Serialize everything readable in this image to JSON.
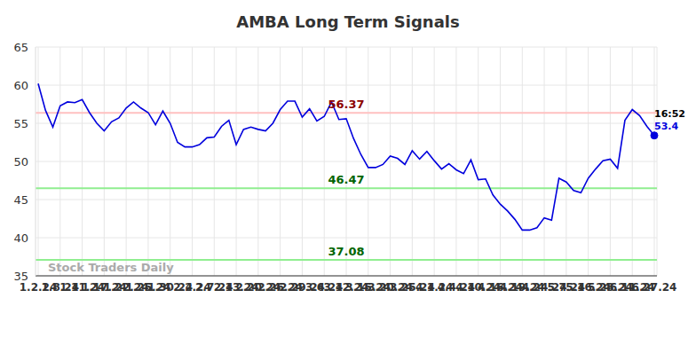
{
  "chart_data": {
    "type": "line",
    "title": "AMBA Long Term Signals",
    "watermark": "Stock Traders Daily",
    "annotation": "16:52",
    "categories": [
      "1.2.24",
      null,
      null,
      "1.8.24",
      null,
      null,
      "1.11.24",
      null,
      null,
      "1.17.24",
      null,
      null,
      "1.22.24",
      null,
      null,
      "1.25.24",
      null,
      null,
      "1.30.24",
      null,
      null,
      "2.2.24",
      null,
      null,
      "2.7.24",
      null,
      null,
      "2.13.24",
      null,
      null,
      "2.20.24",
      null,
      null,
      "2.26.24",
      null,
      null,
      "2.29.24",
      null,
      null,
      "3.6.24",
      null,
      null,
      "3.12.24",
      null,
      null,
      "3.15.24",
      null,
      null,
      "3.20.24",
      null,
      null,
      "3.25.24",
      null,
      null,
      "4.1.24",
      null,
      null,
      "4.4.24",
      null,
      null,
      "4.10.24",
      null,
      null,
      "4.16.24",
      null,
      null,
      "4.19.24",
      null,
      null,
      "4.24.24",
      null,
      null,
      "5.7.24",
      null,
      null,
      "5.16.24",
      null,
      null,
      "5.28.24",
      null,
      null,
      "6.11.24",
      null,
      null,
      "6.27.24"
    ],
    "values": [
      60.2,
      56.7,
      54.5,
      57.3,
      57.8,
      57.7,
      58.1,
      56.4,
      55.0,
      54.0,
      55.2,
      55.7,
      57.0,
      57.8,
      57.0,
      56.4,
      54.8,
      56.6,
      55.0,
      52.5,
      51.9,
      51.9,
      52.2,
      53.1,
      53.2,
      54.6,
      55.4,
      52.2,
      54.2,
      54.5,
      54.2,
      54.0,
      55.0,
      56.8,
      57.9,
      57.9,
      55.8,
      56.9,
      55.3,
      55.9,
      57.8,
      55.5,
      55.6,
      53.0,
      50.9,
      49.2,
      49.2,
      49.6,
      50.7,
      50.4,
      49.6,
      51.4,
      50.3,
      51.3,
      50.1,
      49.0,
      49.7,
      48.9,
      48.4,
      50.2,
      47.6,
      47.7,
      45.6,
      44.4,
      43.5,
      42.4,
      41.0,
      41.0,
      41.3,
      42.6,
      42.3,
      47.8,
      47.3,
      46.2,
      45.9,
      47.8,
      49.0,
      50.1,
      50.3,
      49.1,
      55.4,
      56.8,
      56.0,
      54.6,
      53.4
    ],
    "color": "#0000dd",
    "ylim": [
      35,
      65
    ],
    "yticks": [
      35,
      40,
      45,
      50,
      55,
      60,
      65
    ],
    "grid": true,
    "reference_lines": [
      {
        "value": 56.37,
        "color": "#ffc0c0",
        "label_color": "#8b0000"
      },
      {
        "value": 46.47,
        "color": "#90ee90",
        "label_color": "#006400"
      },
      {
        "value": 37.08,
        "color": "#90ee90",
        "label_color": "#006400"
      }
    ]
  }
}
